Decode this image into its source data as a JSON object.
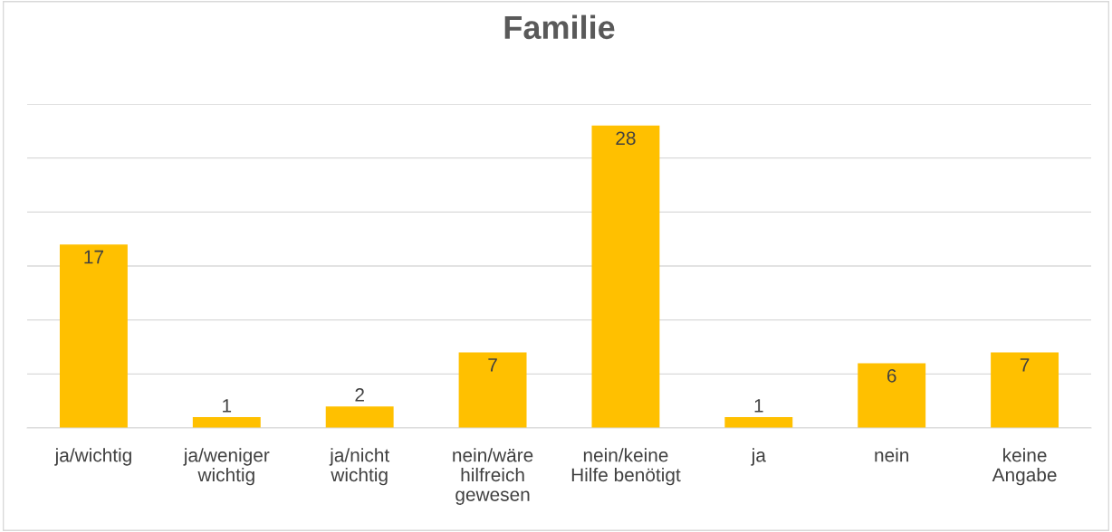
{
  "chart_data": {
    "type": "bar",
    "title": "Familie",
    "categories": [
      "ja/wichtig",
      "ja/weniger\nwichtig",
      "ja/nicht\nwichtig",
      "nein/wäre\nhilfreich\ngewesen",
      "nein/keine\nHilfe benötigt",
      "ja",
      "nein",
      "keine\nAngabe"
    ],
    "values": [
      17,
      1,
      2,
      7,
      28,
      1,
      6,
      7
    ],
    "color": "#ffc000",
    "data_labels": true,
    "ylim": [
      0,
      30
    ],
    "yticks": [
      {
        "value": 0,
        "label": null
      },
      {
        "value": 5,
        "label": null
      },
      {
        "value": 10,
        "label": null
      },
      {
        "value": 15,
        "label": null
      },
      {
        "value": 20,
        "label": null
      },
      {
        "value": 25,
        "label": null
      },
      {
        "value": 30,
        "label": null
      }
    ],
    "grid": "y",
    "tick_labels": "x"
  }
}
